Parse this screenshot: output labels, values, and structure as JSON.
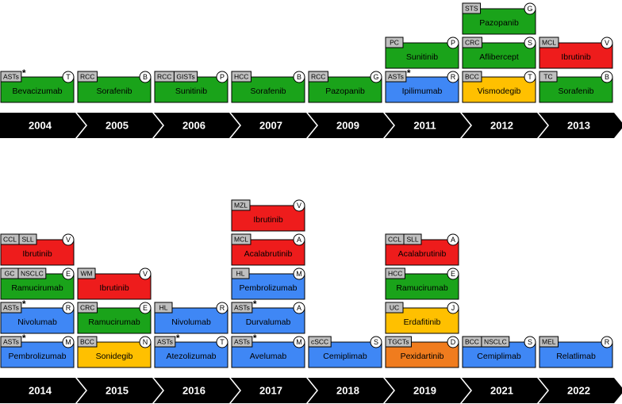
{
  "rows": [
    {
      "columns": [
        {
          "year": "2004",
          "drugs": [
            {
              "name": "Bevacizumab",
              "tags": [
                "ASTs"
              ],
              "note": "*",
              "letter": "T",
              "color": "#1aa31a"
            }
          ]
        },
        {
          "year": "2005",
          "drugs": [
            {
              "name": "Sorafenib",
              "tags": [
                "RCC"
              ],
              "letter": "B",
              "color": "#1aa31a"
            }
          ]
        },
        {
          "year": "2006",
          "drugs": [
            {
              "name": "Sunitinib",
              "tags": [
                "RCC",
                "GISTs"
              ],
              "letter": "P",
              "color": "#1aa31a"
            }
          ]
        },
        {
          "year": "2007",
          "drugs": [
            {
              "name": "Sorafenib",
              "tags": [
                "HCC"
              ],
              "letter": "B",
              "color": "#1aa31a"
            }
          ]
        },
        {
          "year": "2009",
          "drugs": [
            {
              "name": "Pazopanib",
              "tags": [
                "RCC"
              ],
              "letter": "G",
              "color": "#1aa31a"
            }
          ]
        },
        {
          "year": "2011",
          "drugs": [
            {
              "name": "Ipilimumab",
              "tags": [
                "ASTs"
              ],
              "note": "*",
              "letter": "R",
              "color": "#3f87f5"
            },
            {
              "name": "Sunitinib",
              "tags": [
                "PC"
              ],
              "letter": "P",
              "color": "#1aa31a"
            }
          ]
        },
        {
          "year": "2012",
          "drugs": [
            {
              "name": "Vismodegib",
              "tags": [
                "BCC"
              ],
              "letter": "T",
              "color": "#ffc000"
            },
            {
              "name": "Aflibercept",
              "tags": [
                "CRC"
              ],
              "letter": "S",
              "color": "#1aa31a"
            },
            {
              "name": "Pazopanib",
              "tags": [
                "STS"
              ],
              "letter": "G",
              "color": "#1aa31a"
            }
          ]
        },
        {
          "year": "2013",
          "drugs": [
            {
              "name": "Sorafenib",
              "tags": [
                "TC"
              ],
              "letter": "B",
              "color": "#1aa31a"
            },
            {
              "name": "Ibrutinib",
              "tags": [
                "MCL"
              ],
              "letter": "V",
              "color": "#ee1c1c"
            }
          ]
        }
      ]
    },
    {
      "columns": [
        {
          "year": "2014",
          "drugs": [
            {
              "name": "Pembrolizumab",
              "tags": [
                "ASTs"
              ],
              "note": "*",
              "letter": "M",
              "color": "#3f87f5"
            },
            {
              "name": "Nivolumab",
              "tags": [
                "ASTs"
              ],
              "note": "*",
              "letter": "R",
              "color": "#3f87f5"
            },
            {
              "name": "Ramucirumab",
              "tags": [
                "GC",
                "NSCLC"
              ],
              "letter": "E",
              "color": "#1aa31a"
            },
            {
              "name": "Ibrutinib",
              "tags": [
                "CCL",
                "SLL"
              ],
              "letter": "V",
              "color": "#ee1c1c"
            }
          ]
        },
        {
          "year": "2015",
          "drugs": [
            {
              "name": "Sonidegib",
              "tags": [
                "BCC"
              ],
              "letter": "N",
              "color": "#ffc000"
            },
            {
              "name": "Ramucirumab",
              "tags": [
                "CRC"
              ],
              "letter": "E",
              "color": "#1aa31a"
            },
            {
              "name": "Ibrutinib",
              "tags": [
                "WM"
              ],
              "letter": "V",
              "color": "#ee1c1c"
            }
          ]
        },
        {
          "year": "2016",
          "drugs": [
            {
              "name": "Atezolizumab",
              "tags": [
                "ASTs"
              ],
              "note": "*",
              "letter": "T",
              "color": "#3f87f5"
            },
            {
              "name": "Nivolumab",
              "tags": [
                "HL"
              ],
              "letter": "R",
              "color": "#3f87f5"
            }
          ]
        },
        {
          "year": "2017",
          "drugs": [
            {
              "name": "Avelumab",
              "tags": [
                "ASTs"
              ],
              "note": "*",
              "letter": "M",
              "color": "#3f87f5"
            },
            {
              "name": "Durvalumab",
              "tags": [
                "ASTs"
              ],
              "note": "*",
              "letter": "A",
              "color": "#3f87f5"
            },
            {
              "name": "Pembrolizumab",
              "tags": [
                "HL"
              ],
              "letter": "M",
              "color": "#3f87f5"
            },
            {
              "name": "Acalabrutinib",
              "tags": [
                "MCL"
              ],
              "letter": "A",
              "color": "#ee1c1c"
            },
            {
              "name": "Ibrutinib",
              "tags": [
                "MZL"
              ],
              "letter": "V",
              "color": "#ee1c1c"
            }
          ]
        },
        {
          "year": "2018",
          "drugs": [
            {
              "name": "Cemiplimab",
              "tags": [
                "cSCC"
              ],
              "letter": "S",
              "color": "#3f87f5"
            }
          ]
        },
        {
          "year": "2019",
          "drugs": [
            {
              "name": "Pexidartinib",
              "tags": [
                "TGCTs"
              ],
              "letter": "D",
              "color": "#f07c1e"
            },
            {
              "name": "Erdafitinib",
              "tags": [
                "UC"
              ],
              "letter": "J",
              "color": "#ffc000"
            },
            {
              "name": "Ramucirumab",
              "tags": [
                "HCC"
              ],
              "letter": "E",
              "color": "#1aa31a"
            },
            {
              "name": "Acalabrutinib",
              "tags": [
                "CCL",
                "SLL"
              ],
              "letter": "A",
              "color": "#ee1c1c"
            }
          ]
        },
        {
          "year": "2021",
          "drugs": [
            {
              "name": "Cemiplimab",
              "tags": [
                "BCC",
                "NSCLC"
              ],
              "letter": "S",
              "color": "#3f87f5"
            }
          ]
        },
        {
          "year": "2022",
          "drugs": [
            {
              "name": "Relatlimab",
              "tags": [
                "MEL"
              ],
              "letter": "R",
              "color": "#3f87f5"
            }
          ]
        }
      ]
    }
  ]
}
